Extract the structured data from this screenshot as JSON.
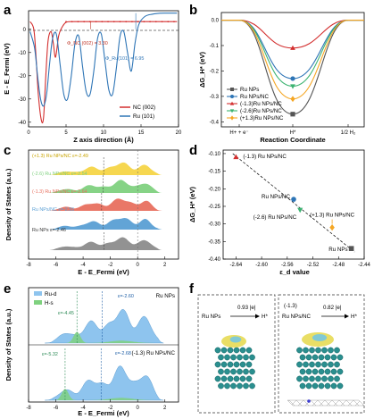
{
  "panels": {
    "a": "a",
    "b": "b",
    "c": "c",
    "d": "d",
    "e": "e",
    "f": "f"
  },
  "chart_data": [
    {
      "panel": "a",
      "type": "line",
      "xlabel": "Z axis direction (Å)",
      "ylabel": "E - E_Fermi (eV)",
      "xlim": [
        0,
        20
      ],
      "ylim": [
        -42,
        8
      ],
      "xticks": [
        "0",
        "5",
        "10",
        "15",
        "20"
      ],
      "yticks": [
        "0",
        "-10",
        "-20",
        "-30",
        "-40"
      ],
      "annotations": [
        {
          "text": "Φ_NC (002) = 3.30",
          "color": "#c0392b"
        },
        {
          "text": "Φ_Ru(101) = 6.95",
          "color": "#2e75b6"
        }
      ],
      "series": [
        {
          "name": "NC (002)",
          "color": "#d32f2f",
          "x": [
            0.2,
            0.7,
            1.0,
            1.3,
            1.7,
            2.0,
            2.3,
            2.6,
            3.0,
            3.3,
            3.6,
            4.0,
            4.4,
            5.0,
            6.0,
            7.0,
            8.0,
            9.0,
            10.0,
            11.0,
            12.0,
            13.0,
            14.0,
            15.0,
            16.0,
            17.0,
            18.0,
            19.0,
            19.8
          ],
          "y": [
            3.3,
            0.0,
            -12.0,
            -28.0,
            -39.0,
            -38.0,
            -20.0,
            -5.0,
            -1.0,
            -6.0,
            -12.0,
            -3.0,
            0.5,
            3.0,
            3.3,
            3.3,
            3.3,
            3.3,
            3.3,
            3.3,
            3.3,
            3.3,
            3.3,
            3.3,
            3.3,
            3.3,
            3.3,
            3.3,
            3.3
          ]
        },
        {
          "name": "Ru (101)",
          "color": "#2e75b6",
          "x": [
            0.2,
            0.8,
            1.2,
            1.6,
            2.0,
            2.4,
            2.8,
            3.2,
            3.7,
            4.2,
            4.7,
            5.2,
            5.7,
            6.2,
            6.7,
            7.2,
            7.7,
            8.2,
            8.7,
            9.2,
            9.7,
            10.2,
            10.7,
            11.2,
            11.7,
            12.2,
            12.7,
            13.2,
            13.7,
            14.2,
            14.7,
            15.5,
            16.5,
            17.5,
            18.5,
            19.8
          ],
          "y": [
            -1.0,
            -8.0,
            -20.0,
            -30.0,
            -33.0,
            -28.0,
            -15.0,
            -4.0,
            -2.0,
            -15.0,
            -28.0,
            -30.0,
            -20.0,
            -6.0,
            -3.0,
            -16.0,
            -27.0,
            -28.0,
            -18.0,
            -4.0,
            -2.0,
            -14.0,
            -26.0,
            -28.0,
            -17.0,
            -3.0,
            -1.0,
            -10.0,
            -18.0,
            -6.0,
            2.0,
            5.5,
            6.5,
            6.9,
            6.95,
            6.95
          ]
        }
      ]
    },
    {
      "panel": "b",
      "type": "line",
      "xlabel": "Reaction Coordinate",
      "ylabel": "ΔG_H* (eV)",
      "xticks": [
        "H+ + e⁻",
        "H*",
        "1/2 H₂"
      ],
      "yticks": [
        "0.0",
        "-0.1",
        "-0.2",
        "-0.3",
        "-0.4"
      ],
      "ylim": [
        -0.42,
        0.03
      ],
      "series": [
        {
          "name": "Ru NPs",
          "color": "#555555",
          "marker": "square",
          "value": -0.37
        },
        {
          "name": "Ru NPs/NC",
          "color": "#2e75b6",
          "marker": "circle",
          "value": -0.23
        },
        {
          "name": "(-1.3)Ru NPs/NC",
          "color": "#d32f2f",
          "marker": "triangle-up",
          "value": -0.11
        },
        {
          "name": "(-2.6)Ru NPs/NC",
          "color": "#3cb371",
          "marker": "triangle-down",
          "value": -0.26
        },
        {
          "name": "(+1.3)Ru NPs/NC",
          "color": "#f5a623",
          "marker": "diamond",
          "value": -0.31
        }
      ]
    },
    {
      "panel": "c",
      "type": "area",
      "xlabel": "E - E_Fermi (eV)",
      "ylabel": "Density of States (a.u.)",
      "xlim": [
        -8,
        3
      ],
      "xticks": [
        "-8",
        "-6",
        "-4",
        "-2",
        "0",
        "2"
      ],
      "series": [
        {
          "name": "(+1.3) Ru NPs/NC",
          "label": "(+1.3) Ru NPs/NC ε=-2.49",
          "color": "#f5d547"
        },
        {
          "name": "(-2.6) Ru NPs/NC",
          "label": "(-2.6) Ru NPs/NC ε=-2.54",
          "color": "#7fd17f"
        },
        {
          "name": "(-1.3) Ru NPs/NC",
          "label": "(-1.3) Ru NPs/NC ε=-2.64",
          "color": "#e8705f"
        },
        {
          "name": "Ru NPs/NC",
          "label": "Ru NPs/NC ε=-2.55",
          "color": "#5a9fd4"
        },
        {
          "name": "Ru NPs",
          "label": "Ru NPs ε=-2.46",
          "color": "#8c8c8c"
        }
      ]
    },
    {
      "panel": "d",
      "type": "scatter",
      "xlabel": "ε_d value",
      "ylabel": "ΔG_H* (eV)",
      "xlim": [
        -2.66,
        -2.44
      ],
      "ylim": [
        -0.4,
        -0.09
      ],
      "xticks": [
        "-2.64",
        "-2.60",
        "-2.56",
        "-2.52",
        "-2.48",
        "-2.44"
      ],
      "yticks": [
        "-0.10",
        "-0.15",
        "-0.20",
        "-0.25",
        "-0.30",
        "-0.35",
        "-0.40"
      ],
      "points": [
        {
          "label": "(-1.3) Ru NPs/NC",
          "x": -2.64,
          "y": -0.11,
          "color": "#d32f2f"
        },
        {
          "label": "Ru NPs/NC",
          "x": -2.55,
          "y": -0.23,
          "color": "#2e75b6"
        },
        {
          "label": "(-2.6) Ru NPs/NC",
          "x": -2.54,
          "y": -0.26,
          "color": "#3cb371"
        },
        {
          "label": "(+1.3) Ru NPs/NC",
          "x": -2.49,
          "y": -0.31,
          "color": "#f5a623"
        },
        {
          "label": "Ru NPs",
          "x": -2.46,
          "y": -0.37,
          "color": "#555555"
        }
      ]
    },
    {
      "panel": "e",
      "type": "area",
      "xlabel": "E - E_Fermi (eV)",
      "ylabel": "Density of States (a.u.)",
      "xlim": [
        -8,
        3
      ],
      "xticks": [
        "-8",
        "-6",
        "-4",
        "-2",
        "0",
        "2"
      ],
      "legend": [
        "Ru-d",
        "H-s"
      ],
      "subpanels": [
        {
          "name": "Ru NPs",
          "ed": "ε=-2.60",
          "hs": "ε=-4.45"
        },
        {
          "name": "(-1.3) Ru NPs/NC",
          "ed": "ε=-2.68",
          "hs": "ε=-5.32"
        }
      ]
    },
    {
      "panel": "f",
      "type": "image",
      "left": {
        "from": "Ru NPs",
        "to": "H*",
        "charge": "0.93 |e|"
      },
      "right": {
        "from": "Ru NPs/NC",
        "to": "H*",
        "charge": "0.82 |e|",
        "prefix": "(-1.3)"
      }
    }
  ]
}
